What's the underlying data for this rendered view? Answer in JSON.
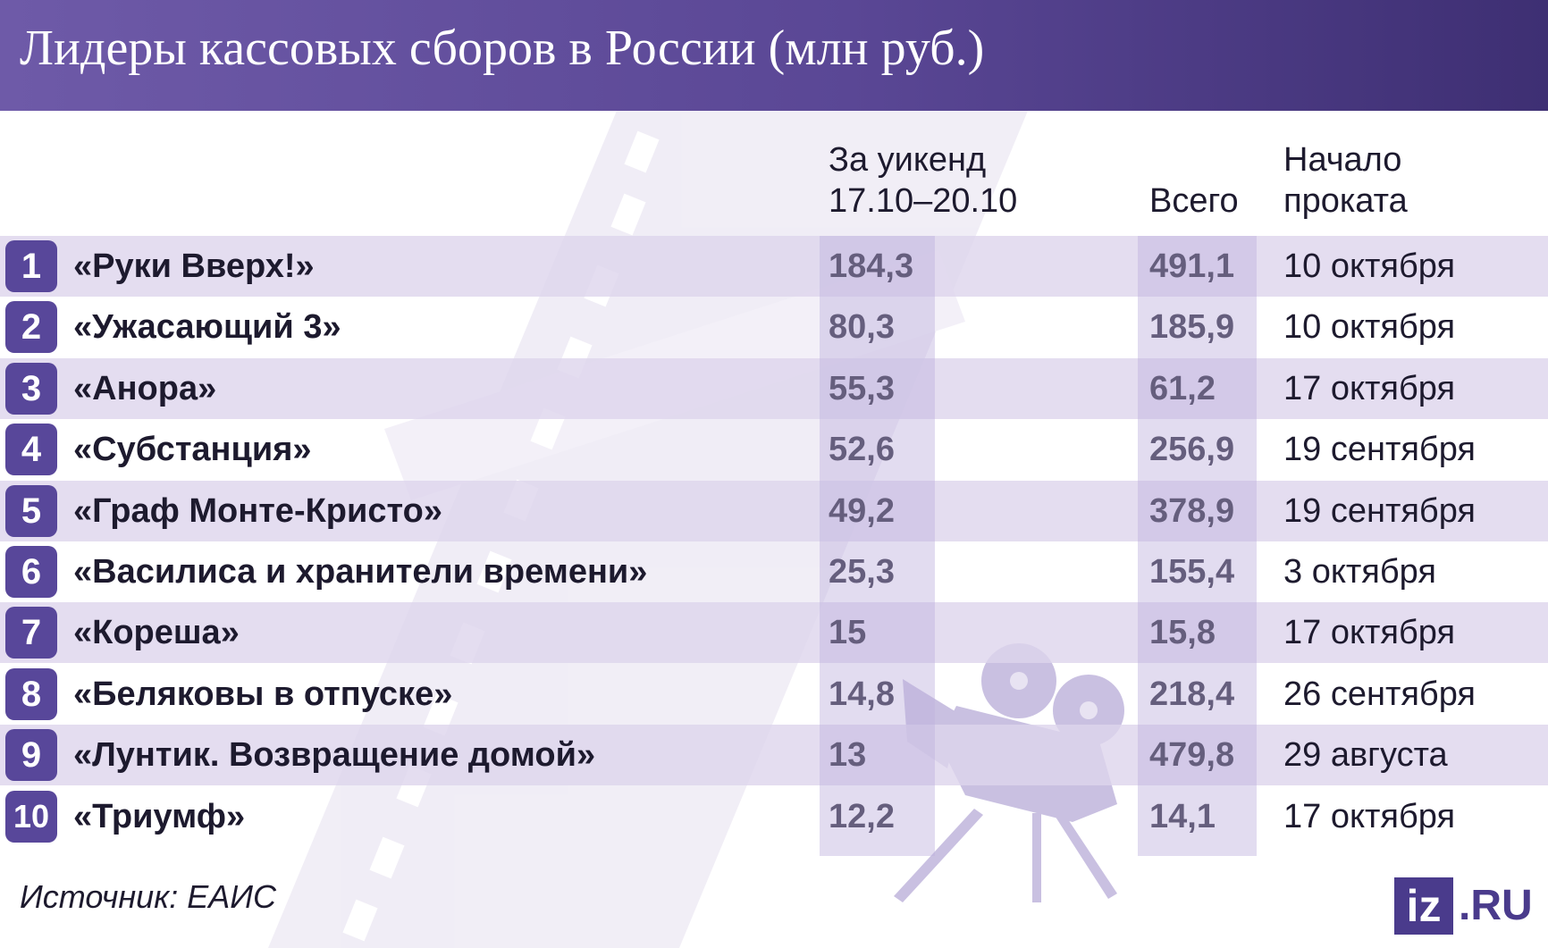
{
  "title": "Лидеры кассовых сборов в России (млн руб.)",
  "columns": {
    "weekend": "За уикенд\n17.10–20.10",
    "total": "Всего",
    "start": "Начало\nпроката"
  },
  "chart_data": {
    "type": "table",
    "title": "Лидеры кассовых сборов в России (млн руб.)",
    "columns": [
      "За уикенд 17.10–20.10",
      "Всего",
      "Начало проката"
    ],
    "rows": [
      {
        "rank": "1",
        "film": "«Руки Вверх!»",
        "weekend": "184,3",
        "total": "491,1",
        "start": "10 октября"
      },
      {
        "rank": "2",
        "film": "«Ужасающий 3»",
        "weekend": "80,3",
        "total": "185,9",
        "start": "10 октября"
      },
      {
        "rank": "3",
        "film": "«Анора»",
        "weekend": "55,3",
        "total": "61,2",
        "start": "17 октября"
      },
      {
        "rank": "4",
        "film": "«Субстанция»",
        "weekend": "52,6",
        "total": "256,9",
        "start": "19 сентября"
      },
      {
        "rank": "5",
        "film": "«Граф Монте-Кристо»",
        "weekend": "49,2",
        "total": "378,9",
        "start": "19 сентября"
      },
      {
        "rank": "6",
        "film": "«Василиса и хранители времени»",
        "weekend": "25,3",
        "total": "155,4",
        "start": "3 октября"
      },
      {
        "rank": "7",
        "film": "«Кореша»",
        "weekend": "15",
        "total": "15,8",
        "start": "17 октября"
      },
      {
        "rank": "8",
        "film": "«Беляковы в отпуске»",
        "weekend": "14,8",
        "total": "218,4",
        "start": "26 сентября"
      },
      {
        "rank": "9",
        "film": "«Лунтик. Возвращение домой»",
        "weekend": "13",
        "total": "479,8",
        "start": "29 августа"
      },
      {
        "rank": "10",
        "film": "«Триумф»",
        "weekend": "12,2",
        "total": "14,1",
        "start": "17 октября"
      }
    ]
  },
  "source": "Источник: ЕАИС",
  "logo": {
    "mark": "iz",
    "domain": ".RU"
  },
  "colors": {
    "header": "#5a4795",
    "rank_badge": "#58479a",
    "row_shade": "#ddd5ec",
    "column_band": "#beb1dd",
    "film_strip": "#ece8f3",
    "projector": "#c9c0e1"
  }
}
